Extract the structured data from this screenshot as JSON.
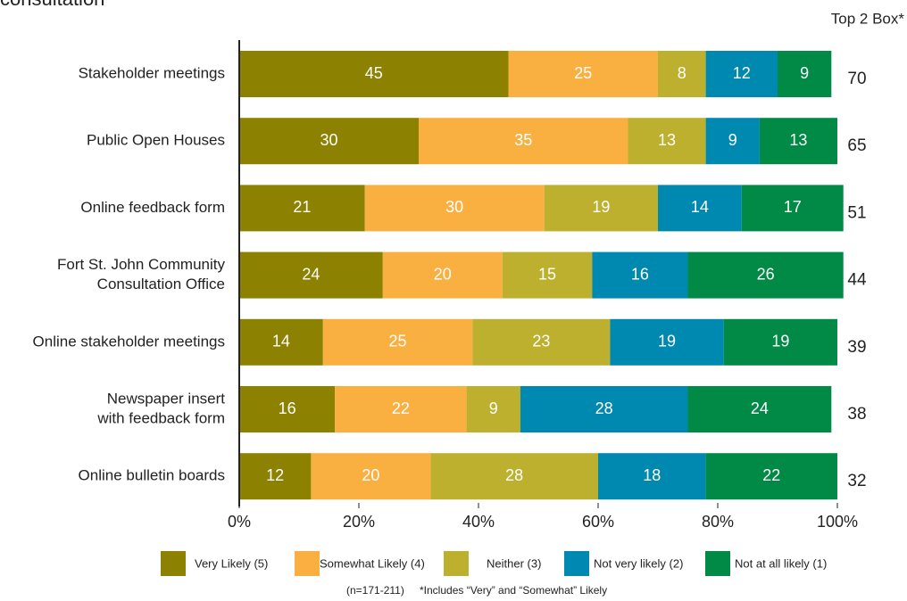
{
  "chart_data": {
    "type": "stacked_barh",
    "title": "consultation",
    "categories": [
      "Stakeholder meetings",
      "Public Open Houses",
      "Online feedback form",
      [
        "Fort St. John Community",
        "Consultation Office"
      ],
      "Online stakeholder meetings",
      [
        "Newspaper insert",
        "with feedback form"
      ],
      "Online bulletin boards"
    ],
    "series": [
      {
        "name": "Very Likely (5)",
        "color": "#8c8100",
        "values": [
          45,
          30,
          21,
          24,
          14,
          16,
          12
        ]
      },
      {
        "name": "Somewhat Likely (4)",
        "color": "#f9b041",
        "values": [
          25,
          35,
          30,
          20,
          25,
          22,
          20
        ]
      },
      {
        "name": "Neither (3)",
        "color": "#bdb02e",
        "values": [
          8,
          13,
          19,
          15,
          23,
          9,
          28
        ]
      },
      {
        "name": "Not very likely (2)",
        "color": "#0089b0",
        "values": [
          12,
          9,
          14,
          16,
          19,
          28,
          18
        ]
      },
      {
        "name": "Not at all likely (1)",
        "color": "#008a45",
        "values": [
          9,
          13,
          17,
          26,
          19,
          24,
          22
        ]
      }
    ],
    "top2box_title": "Top 2 Box*",
    "top2box": [
      70,
      65,
      51,
      44,
      39,
      38,
      32
    ],
    "xlim": [
      0,
      100
    ],
    "xticks": [
      {
        "value": 0,
        "label": "0%"
      },
      {
        "value": 20,
        "label": "20%"
      },
      {
        "value": 40,
        "label": "40%"
      },
      {
        "value": 60,
        "label": "60%"
      },
      {
        "value": 80,
        "label": "80%"
      },
      {
        "value": 100,
        "label": "100%"
      }
    ],
    "notes": [
      "(n=171-211)",
      "*Includes “Very” and “Somewhat” Likely"
    ]
  }
}
